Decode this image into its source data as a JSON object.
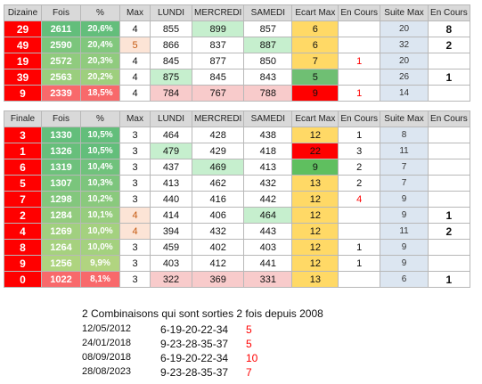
{
  "table1": {
    "headers": [
      "Dizaine",
      "Fois",
      "%",
      "Max",
      "LUNDI",
      "MERCREDI",
      "SAMEDI",
      "Ecart Max",
      "En Cours",
      "Suite Max",
      "En Cours"
    ],
    "rows": [
      [
        "29",
        "2611",
        "20,6%",
        "4",
        "855",
        "899",
        "857",
        "6",
        "",
        "20",
        "8"
      ],
      [
        "49",
        "2590",
        "20,4%",
        "5",
        "866",
        "837",
        "887",
        "6",
        "",
        "32",
        "2"
      ],
      [
        "19",
        "2572",
        "20,3%",
        "4",
        "845",
        "877",
        "850",
        "7",
        "1",
        "20",
        ""
      ],
      [
        "39",
        "2563",
        "20,2%",
        "4",
        "875",
        "845",
        "843",
        "5",
        "",
        "26",
        "1"
      ],
      [
        "9",
        "2339",
        "18,5%",
        "4",
        "784",
        "767",
        "788",
        "9",
        "1",
        "14",
        ""
      ]
    ]
  },
  "table2": {
    "headers": [
      "Finale",
      "Fois",
      "%",
      "Max",
      "LUNDI",
      "MERCREDI",
      "SAMEDI",
      "Ecart Max",
      "En Cours",
      "Suite Max",
      "En Cours"
    ],
    "rows": [
      [
        "3",
        "1330",
        "10,5%",
        "3",
        "464",
        "428",
        "438",
        "12",
        "1",
        "8",
        ""
      ],
      [
        "1",
        "1326",
        "10,5%",
        "3",
        "479",
        "429",
        "418",
        "22",
        "3",
        "11",
        ""
      ],
      [
        "6",
        "1319",
        "10,4%",
        "3",
        "437",
        "469",
        "413",
        "9",
        "2",
        "7",
        ""
      ],
      [
        "5",
        "1307",
        "10,3%",
        "3",
        "413",
        "462",
        "432",
        "13",
        "2",
        "7",
        ""
      ],
      [
        "7",
        "1298",
        "10,2%",
        "3",
        "440",
        "416",
        "442",
        "12",
        "4",
        "9",
        ""
      ],
      [
        "2",
        "1284",
        "10,1%",
        "4",
        "414",
        "406",
        "464",
        "12",
        "",
        "9",
        "1"
      ],
      [
        "4",
        "1269",
        "10,0%",
        "4",
        "394",
        "432",
        "443",
        "12",
        "",
        "11",
        "2"
      ],
      [
        "8",
        "1264",
        "10,0%",
        "3",
        "459",
        "402",
        "403",
        "12",
        "1",
        "9",
        ""
      ],
      [
        "9",
        "1256",
        "9,9%",
        "3",
        "403",
        "412",
        "441",
        "12",
        "1",
        "9",
        ""
      ],
      [
        "0",
        "1022",
        "8,1%",
        "3",
        "322",
        "369",
        "331",
        "13",
        "",
        "6",
        "1"
      ]
    ]
  },
  "combinations": {
    "title": "2 Combinaisons qui sont sorties 2 fois depuis 2008",
    "rows": [
      {
        "date": "12/05/2012",
        "combo": "6-19-20-22-34",
        "count": "5"
      },
      {
        "date": "24/01/2018",
        "combo": "9-23-28-35-37",
        "count": "5"
      },
      {
        "date": "08/09/2018",
        "combo": "6-19-20-22-34",
        "count": "10"
      },
      {
        "date": "28/08/2023",
        "combo": "9-23-28-35-37",
        "count": "7"
      }
    ]
  },
  "colors": {
    "red": "#ff0000",
    "dark_green": "#63a84e",
    "light_green": "#c6efce",
    "light_red": "#f8cbcb",
    "yellow": "#ffd966",
    "light_blue": "#dce6f1",
    "red_text": "#ff0000"
  }
}
